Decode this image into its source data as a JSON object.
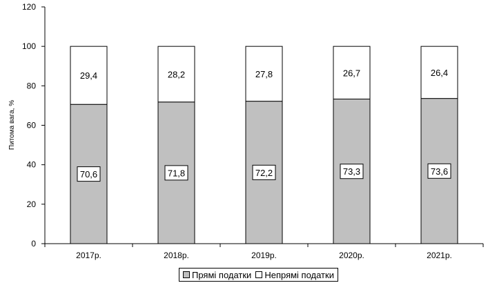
{
  "chart_data": {
    "type": "bar",
    "stacked": true,
    "categories": [
      "2017р.",
      "2018р.",
      "2019р.",
      "2020р.",
      "2021р."
    ],
    "series": [
      {
        "name": "Прямі податки",
        "values": [
          70.6,
          71.8,
          72.2,
          73.3,
          73.6
        ],
        "color": "#c0c0c0"
      },
      {
        "name": "Непрямі податки",
        "values": [
          29.4,
          28.2,
          27.8,
          26.7,
          26.4
        ],
        "color": "#ffffff"
      }
    ],
    "data_labels": {
      "Прямі податки": [
        "70,6",
        "71,8",
        "72,2",
        "73,3",
        "73,6"
      ],
      "Непрямі податки": [
        "29,4",
        "28,2",
        "27,8",
        "26,7",
        "26,4"
      ]
    },
    "ylabel": "Питома вага, %",
    "ylim": [
      0,
      120
    ],
    "yticks": [
      0,
      20,
      40,
      60,
      80,
      100,
      120
    ],
    "grid": false,
    "legend": "bottom"
  }
}
